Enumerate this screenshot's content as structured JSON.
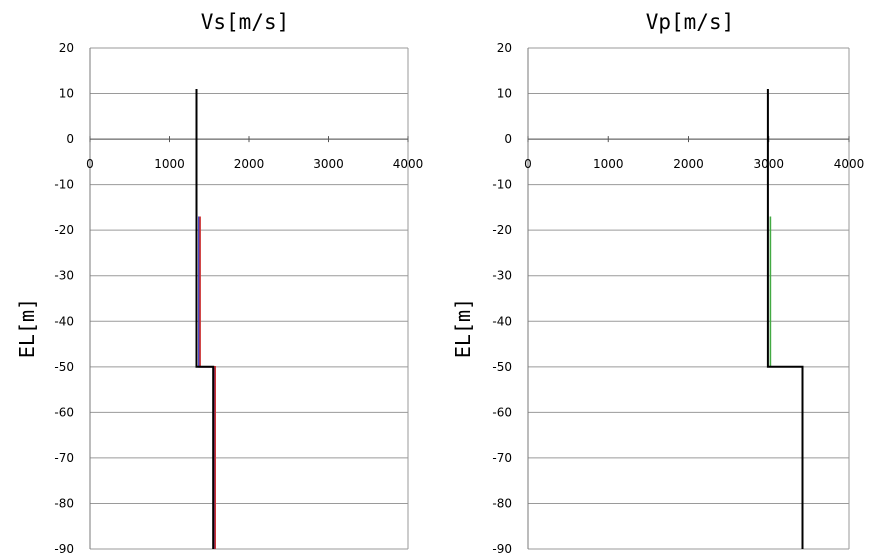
{
  "chart_data": [
    {
      "type": "line",
      "title": "Vs[m/s]",
      "ylabel": "EL[m]",
      "xlabel": "",
      "xlim": [
        0,
        4000
      ],
      "ylim": [
        -90,
        20
      ],
      "xticks": [
        "0",
        "1000",
        "2000",
        "3000",
        "4000"
      ],
      "yticks": [
        "20",
        "10",
        "0",
        "-10",
        "-20",
        "-30",
        "-40",
        "-50",
        "-60",
        "-70",
        "-80",
        "-90"
      ],
      "grid": true,
      "series": [
        {
          "color": "#3a3acc",
          "points": [
            [
              1370,
              -17
            ],
            [
              1370,
              -50
            ],
            [
              1560,
              -50
            ],
            [
              1560,
              -90
            ]
          ]
        },
        {
          "color": "#cc3333",
          "points": [
            [
              1385,
              -17
            ],
            [
              1385,
              -50
            ],
            [
              1575,
              -50
            ],
            [
              1575,
              -90
            ]
          ]
        },
        {
          "color": "#000000",
          "points": [
            [
              1340,
              11
            ],
            [
              1340,
              -50
            ],
            [
              1550,
              -50
            ],
            [
              1550,
              -90
            ]
          ]
        }
      ]
    },
    {
      "type": "line",
      "title": "Vp[m/s]",
      "ylabel": "EL[m]",
      "xlabel": "",
      "xlim": [
        0,
        4000
      ],
      "ylim": [
        -90,
        20
      ],
      "xticks": [
        "0",
        "1000",
        "2000",
        "3000",
        "4000"
      ],
      "yticks": [
        "20",
        "10",
        "0",
        "-10",
        "-20",
        "-30",
        "-40",
        "-50",
        "-60",
        "-70",
        "-80",
        "-90"
      ],
      "grid": true,
      "series": [
        {
          "color": "#44aa44",
          "points": [
            [
              3020,
              -17
            ],
            [
              3020,
              -50
            ]
          ]
        },
        {
          "color": "#000000",
          "points": [
            [
              2990,
              11
            ],
            [
              2990,
              -50
            ],
            [
              3420,
              -50
            ],
            [
              3420,
              -90
            ]
          ]
        }
      ]
    }
  ]
}
